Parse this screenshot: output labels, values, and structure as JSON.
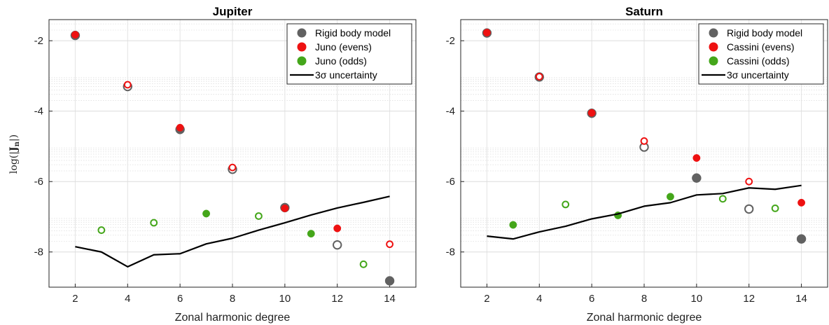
{
  "colors": {
    "rigid": "#616161",
    "even": "#ee1111",
    "odd": "#44a61a",
    "uncertainty": "#000000"
  },
  "ylabel": "log(|Jn|)",
  "chart_data": [
    {
      "type": "scatter",
      "title": "Jupiter",
      "xlabel": "Zonal harmonic degree",
      "ylabel": "log(|Jn|)",
      "xlim": [
        1,
        15
      ],
      "ylim": [
        -9,
        -1.4
      ],
      "xticks": [
        2,
        4,
        6,
        8,
        10,
        12,
        14
      ],
      "yticks": [
        -2,
        -4,
        -6,
        -8
      ],
      "yscale": "log-magnitude",
      "grid": true,
      "legend_position": "top-right",
      "legend": [
        "Rigid body model",
        "Juno (evens)",
        "Juno (odds)",
        "3σ uncertainty"
      ],
      "series": [
        {
          "name": "Rigid body model",
          "marker": "circle",
          "points": [
            {
              "x": 2,
              "y": -1.85,
              "filled": true
            },
            {
              "x": 4,
              "y": -3.3,
              "filled": false
            },
            {
              "x": 6,
              "y": -4.52,
              "filled": true
            },
            {
              "x": 8,
              "y": -5.65,
              "filled": false
            },
            {
              "x": 10,
              "y": -6.74,
              "filled": true
            },
            {
              "x": 12,
              "y": -7.8,
              "filled": false
            },
            {
              "x": 14,
              "y": -8.82,
              "filled": true
            }
          ]
        },
        {
          "name": "Juno (evens)",
          "marker": "circle",
          "points": [
            {
              "x": 2,
              "y": -1.83,
              "filled": true
            },
            {
              "x": 4,
              "y": -3.25,
              "filled": false
            },
            {
              "x": 6,
              "y": -4.47,
              "filled": true
            },
            {
              "x": 8,
              "y": -5.6,
              "filled": false
            },
            {
              "x": 10,
              "y": -6.76,
              "filled": true
            },
            {
              "x": 12,
              "y": -7.33,
              "filled": true
            },
            {
              "x": 14,
              "y": -7.78,
              "filled": false
            }
          ]
        },
        {
          "name": "Juno (odds)",
          "marker": "circle",
          "points": [
            {
              "x": 3,
              "y": -7.38,
              "filled": false
            },
            {
              "x": 5,
              "y": -7.17,
              "filled": false
            },
            {
              "x": 7,
              "y": -6.91,
              "filled": true
            },
            {
              "x": 9,
              "y": -6.98,
              "filled": false
            },
            {
              "x": 11,
              "y": -7.48,
              "filled": true
            },
            {
              "x": 13,
              "y": -8.35,
              "filled": false
            }
          ]
        },
        {
          "name": "3σ uncertainty",
          "type": "line",
          "x": [
            2,
            3,
            4,
            5,
            6,
            7,
            8,
            9,
            10,
            11,
            12,
            13,
            14
          ],
          "y": [
            -7.85,
            -8.0,
            -8.42,
            -8.08,
            -8.05,
            -7.77,
            -7.61,
            -7.38,
            -7.17,
            -6.95,
            -6.75,
            -6.59,
            -6.42
          ]
        }
      ]
    },
    {
      "type": "scatter",
      "title": "Saturn",
      "xlabel": "Zonal harmonic degree",
      "xlim": [
        1,
        15
      ],
      "ylim": [
        -9,
        -1.4
      ],
      "xticks": [
        2,
        4,
        6,
        8,
        10,
        12,
        14
      ],
      "yticks": [
        -2,
        -4,
        -6,
        -8
      ],
      "yscale": "log-magnitude",
      "grid": true,
      "legend_position": "top-right",
      "legend": [
        "Rigid body model",
        "Cassini (evens)",
        "Cassini (odds)",
        "3σ uncertainty"
      ],
      "series": [
        {
          "name": "Rigid body model",
          "marker": "circle",
          "points": [
            {
              "x": 2,
              "y": -1.78,
              "filled": true
            },
            {
              "x": 4,
              "y": -3.03,
              "filled": false
            },
            {
              "x": 6,
              "y": -4.06,
              "filled": true
            },
            {
              "x": 8,
              "y": -5.02,
              "filled": false
            },
            {
              "x": 10,
              "y": -5.9,
              "filled": true
            },
            {
              "x": 12,
              "y": -6.78,
              "filled": false
            },
            {
              "x": 14,
              "y": -7.63,
              "filled": true
            }
          ]
        },
        {
          "name": "Cassini (evens)",
          "marker": "circle",
          "points": [
            {
              "x": 2,
              "y": -1.77,
              "filled": true
            },
            {
              "x": 4,
              "y": -3.02,
              "filled": false
            },
            {
              "x": 6,
              "y": -4.05,
              "filled": true
            },
            {
              "x": 8,
              "y": -4.85,
              "filled": false
            },
            {
              "x": 10,
              "y": -5.33,
              "filled": true
            },
            {
              "x": 12,
              "y": -6.0,
              "filled": false
            },
            {
              "x": 14,
              "y": -6.6,
              "filled": true
            }
          ]
        },
        {
          "name": "Cassini (odds)",
          "marker": "circle",
          "points": [
            {
              "x": 3,
              "y": -7.23,
              "filled": true
            },
            {
              "x": 5,
              "y": -6.65,
              "filled": false
            },
            {
              "x": 7,
              "y": -6.96,
              "filled": true
            },
            {
              "x": 9,
              "y": -6.43,
              "filled": true
            },
            {
              "x": 11,
              "y": -6.49,
              "filled": false
            },
            {
              "x": 13,
              "y": -6.76,
              "filled": false
            }
          ]
        },
        {
          "name": "3σ uncertainty",
          "type": "line",
          "x": [
            2,
            3,
            4,
            5,
            6,
            7,
            8,
            9,
            10,
            11,
            12,
            13,
            14
          ],
          "y": [
            -7.55,
            -7.63,
            -7.43,
            -7.27,
            -7.06,
            -6.92,
            -6.7,
            -6.6,
            -6.38,
            -6.34,
            -6.18,
            -6.22,
            -6.11
          ]
        }
      ]
    }
  ]
}
